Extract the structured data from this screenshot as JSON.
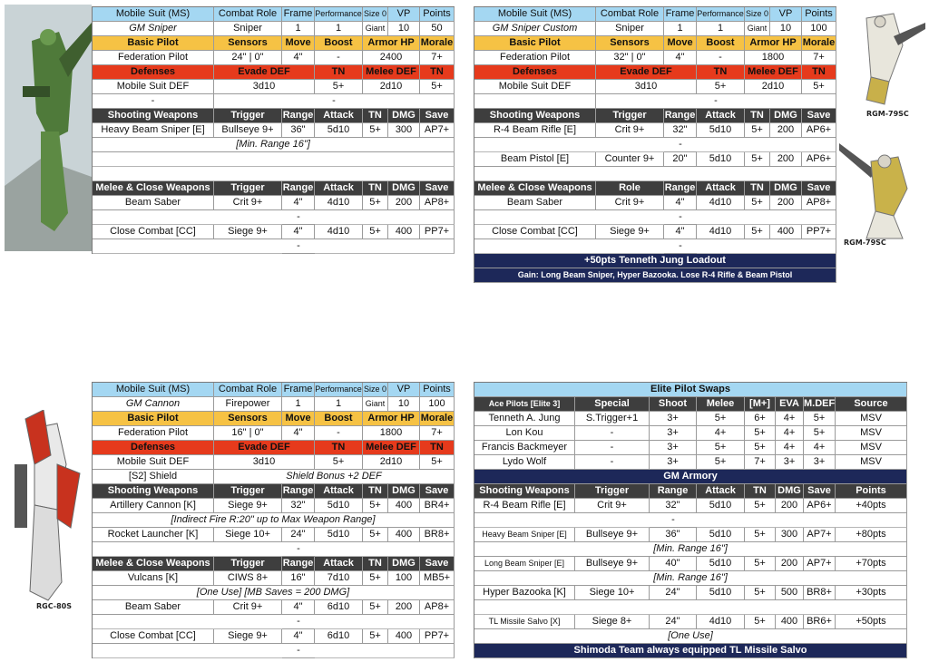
{
  "sniper": {
    "rows": [
      [
        "Mobile Suit (MS)",
        "Combat Role",
        "Frame",
        "Performance",
        "Size 0",
        "VP",
        "Points"
      ],
      [
        "GM Sniper",
        "Sniper",
        "1",
        "1",
        "Giant",
        "10",
        "50"
      ],
      [
        "Basic Pilot",
        "Sensors",
        "Move",
        "Boost",
        "Armor HP",
        "Morale"
      ],
      [
        "Federation Pilot",
        "24\" | 0\"",
        "4\"",
        "-",
        "2400",
        "7+"
      ],
      [
        "Defenses",
        "Evade DEF",
        "TN",
        "Melee DEF",
        "TN"
      ],
      [
        "Mobile Suit DEF",
        "3d10",
        "5+",
        "2d10",
        "5+"
      ],
      [
        "-",
        "-"
      ],
      [
        "Shooting Weapons",
        "Trigger",
        "Range",
        "Attack",
        "TN",
        "DMG",
        "Save"
      ],
      [
        "Heavy Beam Sniper [E]",
        "Bullseye 9+",
        "36\"",
        "5d10",
        "5+",
        "300",
        "AP7+"
      ],
      [
        "[Min. Range 16\"]"
      ],
      [],
      [],
      [
        "Melee & Close Weapons",
        "Trigger",
        "Range",
        "Attack",
        "TN",
        "DMG",
        "Save"
      ],
      [
        "Beam Saber",
        "Crit 9+",
        "4\"",
        "4d10",
        "5+",
        "200",
        "AP8+"
      ],
      [
        "-"
      ],
      [
        "Close Combat [CC]",
        "Siege 9+",
        "4\"",
        "4d10",
        "5+",
        "400",
        "PP7+"
      ],
      [
        "-"
      ]
    ]
  },
  "sniper_custom": {
    "rows": [
      [
        "Mobile Suit (MS)",
        "Combat Role",
        "Frame",
        "Performance",
        "Size 0",
        "VP",
        "Points"
      ],
      [
        "GM Sniper Custom",
        "Sniper",
        "1",
        "1",
        "Giant",
        "10",
        "100"
      ],
      [
        "Basic Pilot",
        "Sensors",
        "Move",
        "Boost",
        "Armor HP",
        "Morale"
      ],
      [
        "Federation Pilot",
        "32\" | 0\"",
        "4\"",
        "-",
        "1800",
        "7+"
      ],
      [
        "Defenses",
        "Evade DEF",
        "TN",
        "Melee DEF",
        "TN"
      ],
      [
        "Mobile Suit DEF",
        "3d10",
        "5+",
        "2d10",
        "5+"
      ],
      [
        null,
        "-"
      ],
      [
        "Shooting Weapons",
        "Trigger",
        "Range",
        "Attack",
        "TN",
        "DMG",
        "Save"
      ],
      [
        "R-4 Beam Rifle [E]",
        "Crit 9+",
        "32\"",
        "5d10",
        "5+",
        "200",
        "AP6+"
      ],
      [
        "-"
      ],
      [
        "Beam Pistol [E]",
        "Counter 9+",
        "20\"",
        "5d10",
        "5+",
        "200",
        "AP6+"
      ],
      [],
      [
        "Melee & Close Weapons",
        "Role",
        "Range",
        "Attack",
        "TN",
        "DMG",
        "Save"
      ],
      [
        "Beam Saber",
        "Crit 9+",
        "4\"",
        "4d10",
        "5+",
        "200",
        "AP8+"
      ],
      [
        "-"
      ],
      [
        "Close Combat [CC]",
        "Siege 9+",
        "4\"",
        "4d10",
        "5+",
        "400",
        "PP7+"
      ],
      [
        "-"
      ],
      [
        "+50pts Tenneth Jung Loadout"
      ],
      [
        "Gain: Long Beam Sniper, Hyper Bazooka.  Lose R-4 Rifle & Beam Pistol"
      ]
    ],
    "labels": [
      "RGM-79SC",
      "RGM-79SC"
    ]
  },
  "cannon": {
    "rows": [
      [
        "Mobile Suit (MS)",
        "Combat Role",
        "Frame",
        "Performance",
        "Size 0",
        "VP",
        "Points"
      ],
      [
        "GM Cannon",
        "Firepower",
        "1",
        "1",
        "Giant",
        "10",
        "100"
      ],
      [
        "Basic Pilot",
        "Sensors",
        "Move",
        "Boost",
        "Armor HP",
        "Morale"
      ],
      [
        "Federation Pilot",
        "16\" | 0\"",
        "4\"",
        "-",
        "1800",
        "7+"
      ],
      [
        "Defenses",
        "Evade DEF",
        "TN",
        "Melee DEF",
        "TN"
      ],
      [
        "Mobile Suit DEF",
        "3d10",
        "5+",
        "2d10",
        "5+"
      ],
      [
        "[S2] Shield",
        "Shield Bonus +2 DEF"
      ],
      [
        "Shooting Weapons",
        "Trigger",
        "Range",
        "Attack",
        "TN",
        "DMG",
        "Save"
      ],
      [
        "Artillery Cannon [K]",
        "Siege 9+",
        "32\"",
        "5d10",
        "5+",
        "400",
        "BR4+"
      ],
      [
        "[Indirect Fire R:20\" up to Max Weapon Range]"
      ],
      [
        "Rocket Launcher [K]",
        "Siege 10+",
        "24\"",
        "5d10",
        "5+",
        "400",
        "BR8+"
      ],
      [
        "-"
      ],
      [
        "Melee & Close Weapons",
        "Trigger",
        "Range",
        "Attack",
        "TN",
        "DMG",
        "Save"
      ],
      [
        "Vulcans [K]",
        "CIWS 8+",
        "16\"",
        "7d10",
        "5+",
        "100",
        "MB5+"
      ],
      [
        "[One Use] [MB Saves = 200 DMG]"
      ],
      [
        "Beam Saber",
        "Crit 9+",
        "4\"",
        "6d10",
        "5+",
        "200",
        "AP8+"
      ],
      [
        "-"
      ],
      [
        "Close Combat [CC]",
        "Siege 9+",
        "4\"",
        "6d10",
        "5+",
        "400",
        "PP7+"
      ],
      [
        "-"
      ]
    ],
    "labels": [
      "RGC-80S"
    ]
  },
  "swaps": {
    "rows": [
      [
        "Elite Pilot Swaps"
      ],
      [
        "Ace Pilots [Elite 3]",
        "Special",
        "Shoot",
        "Melee",
        "[M+]",
        "EVA",
        "M.DEF",
        "Source"
      ],
      [
        "Tenneth A. Jung",
        "S.Trigger+1",
        "3+",
        "5+",
        "6+",
        "4+",
        "5+",
        "MSV"
      ],
      [
        "Lon Kou",
        "-",
        "3+",
        "4+",
        "5+",
        "4+",
        "5+",
        "MSV"
      ],
      [
        "Francis Backmeyer",
        "-",
        "3+",
        "5+",
        "5+",
        "4+",
        "4+",
        "MSV"
      ],
      [
        "Lydo Wolf",
        "-",
        "3+",
        "5+",
        "7+",
        "3+",
        "3+",
        "MSV"
      ],
      [
        "GM Armory"
      ],
      [
        "Shooting Weapons",
        "Trigger",
        "Range",
        "Attack",
        "TN",
        "DMG",
        "Save",
        "Points"
      ],
      [
        "R-4 Beam Rifle [E]",
        "Crit 9+",
        "32\"",
        "5d10",
        "5+",
        "200",
        "AP6+",
        "+40pts"
      ],
      [
        "-"
      ],
      [
        "Heavy Beam Sniper [E]",
        "Bullseye 9+",
        "36\"",
        "5d10",
        "5+",
        "300",
        "AP7+",
        "+80pts"
      ],
      [
        "[Min. Range 16\"]"
      ],
      [
        "Long Beam Sniper [E]",
        "Bullseye 9+",
        "40\"",
        "5d10",
        "5+",
        "200",
        "AP7+",
        "+70pts"
      ],
      [
        "[Min. Range 16\"]"
      ],
      [
        "Hyper Bazooka [K]",
        "Siege 10+",
        "24\"",
        "5d10",
        "5+",
        "500",
        "BR8+",
        "+30pts"
      ],
      [],
      [
        "TL Missile Salvo [X]",
        "Siege 8+",
        "24\"",
        "4d10",
        "5+",
        "400",
        "BR6+",
        "+50pts"
      ],
      [
        "[One Use]"
      ],
      [
        "Shimoda Team always equipped TL Missile Salvo"
      ]
    ]
  }
}
